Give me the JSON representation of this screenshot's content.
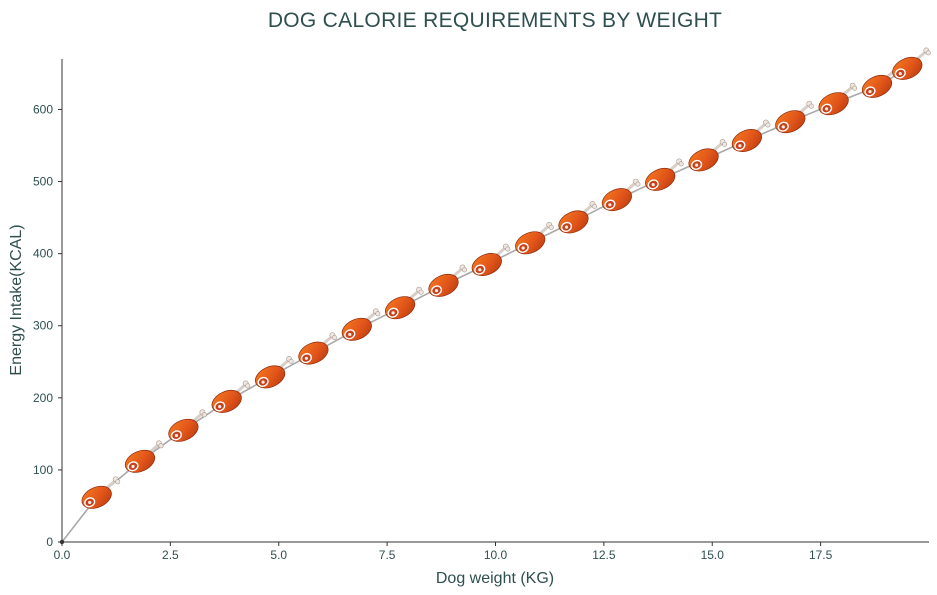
{
  "chart_data": {
    "type": "line",
    "title": "DOG CALORIE REQUIREMENTS BY WEIGHT",
    "xlabel": "Dog weight (KG)",
    "ylabel": "Energy Intake(KCAL)",
    "xlim": [
      0,
      20
    ],
    "ylim": [
      0,
      670
    ],
    "xticks": [
      0.0,
      2.5,
      5.0,
      7.5,
      10.0,
      12.5,
      15.0,
      17.5
    ],
    "xtick_labels": [
      "0.0",
      "2.5",
      "5.0",
      "7.5",
      "10.0",
      "12.5",
      "15.0",
      "17.5"
    ],
    "yticks": [
      0,
      100,
      200,
      300,
      400,
      500,
      600
    ],
    "ytick_labels": [
      "0",
      "100",
      "200",
      "300",
      "400",
      "500",
      "600"
    ],
    "grid": false,
    "marker": "meat-drumstick-icon",
    "series": [
      {
        "line_color": "#a9a9a9",
        "marker_color": "#e2561a",
        "x": [
          0,
          0.8,
          1.8,
          2.8,
          3.8,
          4.8,
          5.8,
          6.8,
          7.8,
          8.8,
          9.8,
          10.8,
          11.8,
          12.8,
          13.8,
          14.8,
          15.8,
          16.8,
          17.8,
          18.8,
          19.5
        ],
        "y": [
          0,
          62,
          112,
          155,
          195,
          229,
          262,
          295,
          325,
          356,
          385,
          415,
          444,
          475,
          503,
          530,
          557,
          583,
          608,
          632,
          657
        ]
      }
    ]
  }
}
